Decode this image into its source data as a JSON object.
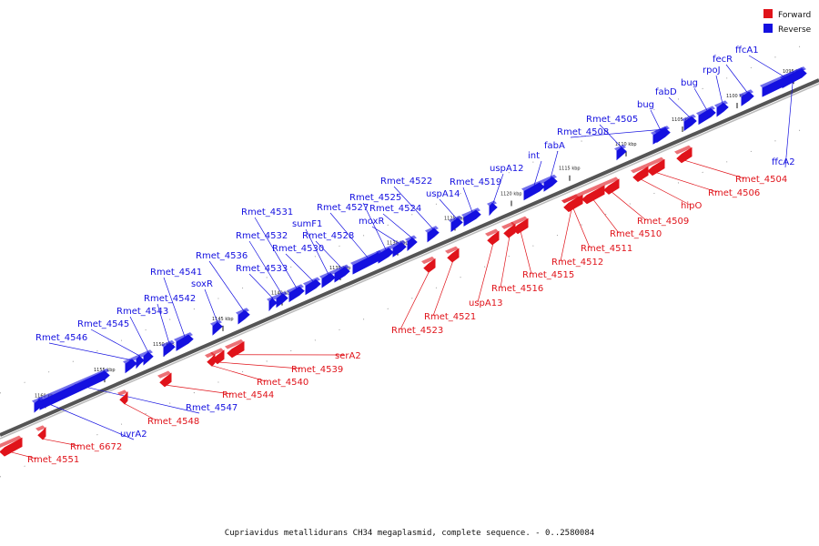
{
  "legend": {
    "forward_label": "Forward",
    "reverse_label": "Reverse",
    "forward_color": "#e0131a",
    "reverse_color": "#1410e0"
  },
  "caption": "Cupriavidus metallidurans CH34 megaplasmid, complete sequence. - 0..2580084",
  "scale_labels": [
    "1095 kbp",
    "1100 kbp",
    "1105 kbp",
    "1110 kbp",
    "1115 kbp",
    "1120 kbp",
    "1125 kbp",
    "1130 kbp",
    "1135 kbp",
    "1140 kbp",
    "1145 kbp",
    "1150 kbp",
    "1155 kbp",
    "1160 kbp"
  ],
  "reverse_genes": [
    "ffcA1",
    "fecR",
    "rpoJ",
    "bug",
    "fabD",
    "bug",
    "Rmet_4505",
    "Rmet_4508",
    "fabA",
    "int",
    "uspA12",
    "Rmet_4519",
    "uspA14",
    "Rmet_4522",
    "Rmet_4524",
    "moxR",
    "Rmet_4525",
    "Rmet_4527",
    "Rmet_4528",
    "sumF1",
    "Rmet_4530",
    "Rmet_4531",
    "Rmet_4532",
    "Rmet_4533",
    "Rmet_4536",
    "soxR",
    "Rmet_4541",
    "Rmet_4542",
    "Rmet_4543",
    "Rmet_4545",
    "Rmet_4546",
    "Rmet_4547",
    "uvrA2",
    "ffcA2"
  ],
  "forward_genes": [
    "Rmet_4504",
    "Rmet_4506",
    "hipO",
    "Rmet_4509",
    "Rmet_4510",
    "Rmet_4511",
    "Rmet_4512",
    "Rmet_4515",
    "Rmet_4516",
    "uspA13",
    "Rmet_4521",
    "Rmet_4523",
    "serA2",
    "Rmet_4539",
    "Rmet_4540",
    "Rmet_4544",
    "Rmet_4548",
    "Rmet_6672",
    "Rmet_4551"
  ]
}
